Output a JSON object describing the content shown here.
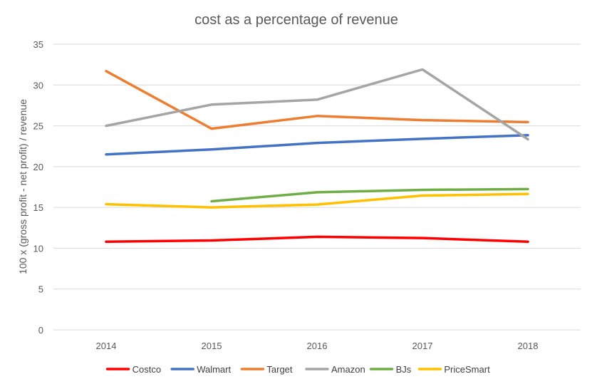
{
  "chart_data": {
    "type": "line",
    "title": "cost as a percentage of revenue",
    "xlabel": "",
    "ylabel": "100 x (gross profit - net profit) / revenue",
    "categories": [
      "2014",
      "2015",
      "2016",
      "2017",
      "2018"
    ],
    "yticks": [
      "0",
      "5",
      "10",
      "15",
      "20",
      "25",
      "30",
      "35"
    ],
    "ylim": [
      0,
      35
    ],
    "grid": "horizontal",
    "legend_position": "bottom",
    "series": [
      {
        "name": "Costco",
        "color": "#ff0000",
        "values": [
          10.8,
          10.95,
          11.4,
          11.25,
          10.8
        ]
      },
      {
        "name": "Walmart",
        "color": "#4472c4",
        "values": [
          21.5,
          22.1,
          22.9,
          23.4,
          23.85
        ]
      },
      {
        "name": "Target",
        "color": "#ed7d31",
        "values": [
          31.7,
          24.65,
          26.2,
          25.7,
          25.45
        ]
      },
      {
        "name": "Amazon",
        "color": "#a5a5a5",
        "values": [
          25.0,
          27.6,
          28.2,
          31.9,
          23.35
        ]
      },
      {
        "name": "BJs",
        "color": "#70ad47",
        "values": [
          null,
          15.75,
          16.85,
          17.15,
          17.25
        ]
      },
      {
        "name": "PriceSmart",
        "color": "#ffc000",
        "values": [
          15.4,
          15.0,
          15.35,
          16.45,
          16.65
        ]
      }
    ]
  }
}
